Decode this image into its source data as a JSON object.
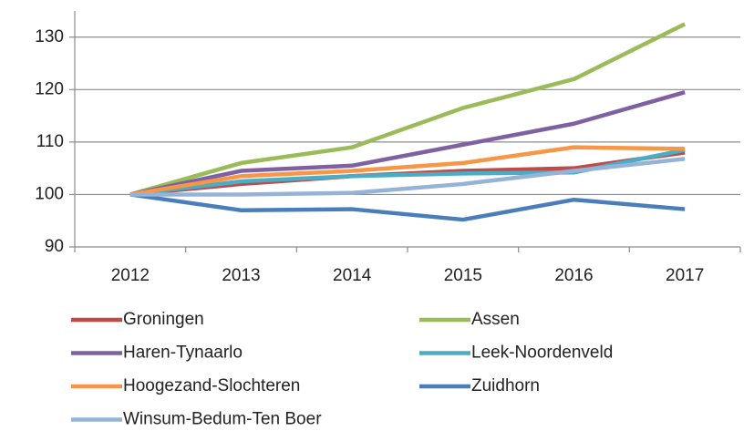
{
  "chart_data": {
    "type": "line",
    "categories": [
      "2012",
      "2013",
      "2014",
      "2015",
      "2016",
      "2017"
    ],
    "series": [
      {
        "name": "Groningen",
        "color": "#be4b48",
        "values": [
          100,
          102,
          103.5,
          104.5,
          105,
          108
        ]
      },
      {
        "name": "Assen",
        "color": "#9bbb59",
        "values": [
          100,
          106,
          109,
          116.5,
          122,
          132.5
        ]
      },
      {
        "name": "Haren-Tynaarlo",
        "color": "#7f60a0",
        "values": [
          100,
          104.5,
          105.5,
          109.5,
          113.5,
          119.5
        ]
      },
      {
        "name": "Leek-Noordenveld",
        "color": "#4bacc6",
        "values": [
          100,
          102.5,
          103.5,
          104,
          104.2,
          108.5
        ]
      },
      {
        "name": "Hoogezand-Slochteren",
        "color": "#f79646",
        "values": [
          100,
          103.5,
          104.5,
          106,
          109,
          108.7
        ]
      },
      {
        "name": "Zuidhorn",
        "color": "#4a7ebb",
        "values": [
          100,
          97,
          97.2,
          95.2,
          99,
          97.2
        ]
      },
      {
        "name": "Winsum-Bedum-Ten Boer",
        "color": "#95b3d7",
        "values": [
          100,
          100,
          100.3,
          102,
          104.5,
          106.8
        ]
      }
    ],
    "ylim": [
      90,
      135
    ],
    "yticks": [
      90,
      100,
      110,
      120,
      130
    ],
    "grid": true,
    "legend": "bottom"
  }
}
